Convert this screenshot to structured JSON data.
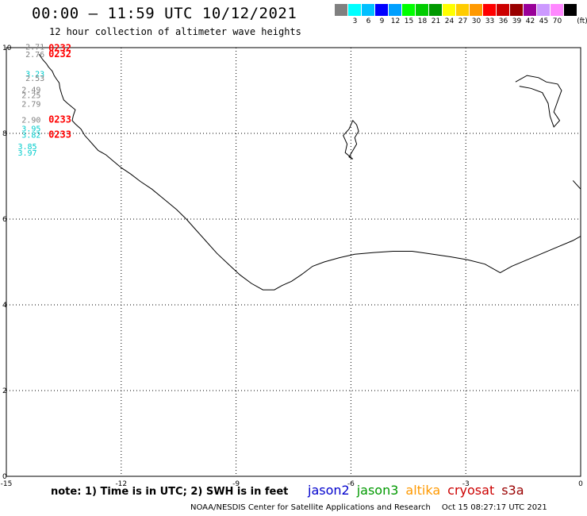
{
  "header": {
    "title": "00:00 – 11:59 UTC 10/12/2021",
    "subtitle": "12 hour collection of altimeter wave heights"
  },
  "colorbar": {
    "unit": "(ft)",
    "swatches": [
      {
        "color": "#808080",
        "label": ""
      },
      {
        "color": "#00ffff",
        "label": "3"
      },
      {
        "color": "#00c0ff",
        "label": "6"
      },
      {
        "color": "#0000ff",
        "label": "9"
      },
      {
        "color": "#00a0ff",
        "label": "12"
      },
      {
        "color": "#00ff00",
        "label": "15"
      },
      {
        "color": "#00cc00",
        "label": "18"
      },
      {
        "color": "#009900",
        "label": "21"
      },
      {
        "color": "#ffff00",
        "label": "24"
      },
      {
        "color": "#ffcc00",
        "label": "27"
      },
      {
        "color": "#ff9900",
        "label": "30"
      },
      {
        "color": "#ff0000",
        "label": "33"
      },
      {
        "color": "#cc0000",
        "label": "36"
      },
      {
        "color": "#990000",
        "label": "39"
      },
      {
        "color": "#990099",
        "label": "42"
      },
      {
        "color": "#cc99ff",
        "label": "45"
      },
      {
        "color": "#ff88ff",
        "label": "70"
      },
      {
        "color": "#000000",
        "label": ""
      }
    ]
  },
  "map": {
    "lon_range": [
      -15,
      0
    ],
    "lat_range": [
      0,
      10
    ],
    "x_ticks": [
      {
        "value": -15,
        "label": "-15"
      },
      {
        "value": -12,
        "label": "-12"
      },
      {
        "value": -9,
        "label": "-9"
      },
      {
        "value": -6,
        "label": "-6"
      },
      {
        "value": -3,
        "label": "-3"
      },
      {
        "value": 0,
        "label": "0"
      }
    ],
    "y_ticks": [
      {
        "value": 0,
        "label": "0"
      },
      {
        "value": 2,
        "label": "2"
      },
      {
        "value": 4,
        "label": "4"
      },
      {
        "value": 6,
        "label": "6"
      },
      {
        "value": 8,
        "label": "8"
      },
      {
        "value": 10,
        "label": "10"
      }
    ],
    "grid": "dotted"
  },
  "observations": [
    {
      "lon": -14.5,
      "lat": 9.95,
      "text": "2.71",
      "color": "#808080"
    },
    {
      "lon": -14.5,
      "lat": 9.78,
      "text": "2.76",
      "color": "#808080"
    },
    {
      "lon": -14.5,
      "lat": 9.32,
      "text": "3.23",
      "color": "#00cccc"
    },
    {
      "lon": -14.5,
      "lat": 9.22,
      "text": "2.53",
      "color": "#808080"
    },
    {
      "lon": -14.6,
      "lat": 8.95,
      "text": "2.49",
      "color": "#808080"
    },
    {
      "lon": -14.6,
      "lat": 8.82,
      "text": "2.25",
      "color": "#808080"
    },
    {
      "lon": -14.6,
      "lat": 8.62,
      "text": "2.79",
      "color": "#808080"
    },
    {
      "lon": -14.6,
      "lat": 8.25,
      "text": "2.90",
      "color": "#808080"
    },
    {
      "lon": -14.6,
      "lat": 8.05,
      "text": "3.95",
      "color": "#00cccc"
    },
    {
      "lon": -14.6,
      "lat": 7.9,
      "text": "3.82",
      "color": "#00cccc"
    },
    {
      "lon": -14.7,
      "lat": 7.63,
      "text": "3.85",
      "color": "#00cccc"
    },
    {
      "lon": -14.7,
      "lat": 7.48,
      "text": "3.97",
      "color": "#00cccc"
    }
  ],
  "time_labels": [
    {
      "lon": -13.9,
      "lat": 9.92,
      "text": "0232",
      "color": "#ff0000"
    },
    {
      "lon": -13.9,
      "lat": 9.78,
      "text": "0232",
      "color": "#ff0000"
    },
    {
      "lon": -13.9,
      "lat": 8.25,
      "text": "0233",
      "color": "#ff0000"
    },
    {
      "lon": -13.9,
      "lat": 7.9,
      "text": "0233",
      "color": "#ff0000"
    }
  ],
  "note": "note: 1) Time is in UTC; 2) SWH is in feet",
  "satellites": [
    {
      "name": "jason2",
      "color": "#0000cc"
    },
    {
      "name": "jason3",
      "color": "#009900"
    },
    {
      "name": "altika",
      "color": "#ff9900"
    },
    {
      "name": "cryosat",
      "color": "#cc0000"
    },
    {
      "name": "s3a",
      "color": "#990000"
    }
  ],
  "credit": {
    "org": "NOAA/NESDIS Center for Satellite Applications and Research",
    "timestamp": "Oct 15 08:27:17 UTC 2021"
  }
}
